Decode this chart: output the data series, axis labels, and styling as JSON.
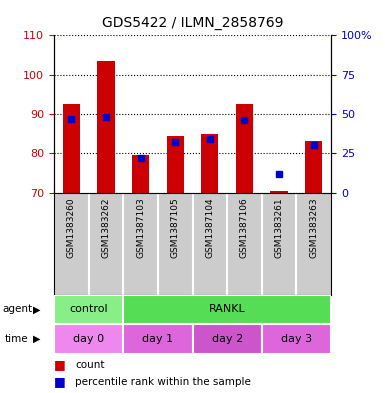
{
  "title": "GDS5422 / ILMN_2858769",
  "samples": [
    "GSM1383260",
    "GSM1383262",
    "GSM1387103",
    "GSM1387105",
    "GSM1387104",
    "GSM1387106",
    "GSM1383261",
    "GSM1383263"
  ],
  "counts": [
    92.5,
    103.5,
    79.5,
    84.5,
    85.0,
    92.5,
    70.5,
    83.0
  ],
  "percentiles": [
    47,
    48,
    22,
    32,
    34,
    46,
    12,
    30
  ],
  "ylim_left": [
    70,
    110
  ],
  "ylim_right": [
    0,
    100
  ],
  "yticks_left": [
    70,
    80,
    90,
    100,
    110
  ],
  "yticks_right": [
    0,
    25,
    50,
    75,
    100
  ],
  "ytick_labels_right": [
    "0",
    "25",
    "50",
    "75",
    "100%"
  ],
  "bar_color": "#cc0000",
  "dot_color": "#0000cc",
  "agent_row": [
    {
      "label": "control",
      "start": 0,
      "end": 2,
      "color": "#88ee88"
    },
    {
      "label": "RANKL",
      "start": 2,
      "end": 8,
      "color": "#55dd55"
    }
  ],
  "time_row": [
    {
      "label": "day 0",
      "start": 0,
      "end": 2,
      "color": "#ee88ee"
    },
    {
      "label": "day 1",
      "start": 2,
      "end": 4,
      "color": "#dd66dd"
    },
    {
      "label": "day 2",
      "start": 4,
      "end": 6,
      "color": "#cc55cc"
    },
    {
      "label": "day 3",
      "start": 6,
      "end": 8,
      "color": "#dd66dd"
    }
  ],
  "legend_count_color": "#cc0000",
  "legend_dot_color": "#0000cc",
  "left_tick_color": "#cc0000",
  "right_tick_color": "#0000cc",
  "xtick_bg_color": "#cccccc",
  "plot_bg_color": "#ffffff"
}
